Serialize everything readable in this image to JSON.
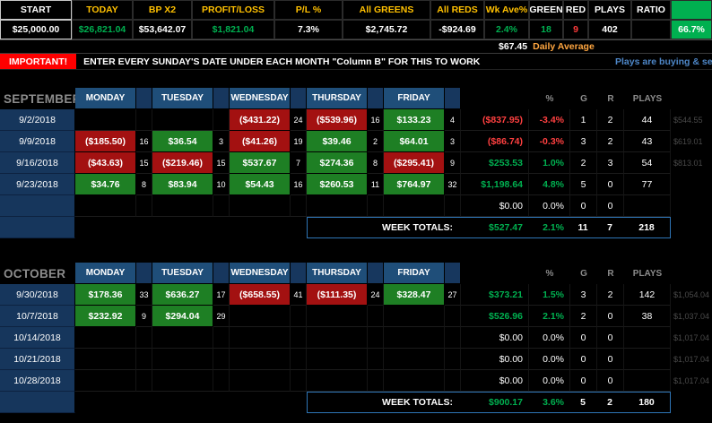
{
  "summary": {
    "cells": [
      {
        "label": "START",
        "value": "$25,000.00",
        "lc": "white",
        "vc": "white",
        "boxed": true
      },
      {
        "label": "TODAY",
        "value": "$26,821.04",
        "lc": "gold",
        "vc": "green"
      },
      {
        "label": "BP X2",
        "value": "$53,642.07",
        "lc": "gold",
        "vc": "white"
      },
      {
        "label": "PROFIT/LOSS",
        "value": "$1,821.04",
        "lc": "gold",
        "vc": "green"
      },
      {
        "label": "P/L %",
        "value": "7.3%",
        "lc": "gold",
        "vc": "white"
      },
      {
        "label": "All GREENS",
        "value": "$2,745.72",
        "lc": "gold",
        "vc": "white"
      },
      {
        "label": "All REDS",
        "value": "-$924.69",
        "lc": "gold",
        "vc": "white"
      },
      {
        "label": "Wk Ave%",
        "value": "2.4%",
        "lc": "gold",
        "vc": "green"
      },
      {
        "label": "GREEN",
        "value": "18",
        "lc": "white",
        "vc": "green"
      },
      {
        "label": "RED",
        "value": "9",
        "lc": "white",
        "vc": "red"
      },
      {
        "label": "PLAYS",
        "value": "402",
        "lc": "white",
        "vc": "white"
      },
      {
        "label": "RATIO",
        "value": "",
        "lc": "white",
        "vc": "white"
      },
      {
        "label": "",
        "value": "66.7%",
        "lc": "white",
        "vc": "white",
        "swatch": true
      }
    ]
  },
  "daily_average": {
    "value": "$67.45",
    "label": "Daily Average"
  },
  "banner": {
    "tag": "IMPORTANT!",
    "message": "ENTER EVERY SUNDAY'S DATE UNDER EACH MONTH \"Column B\" FOR THIS TO WORK",
    "note": "Plays are buying & se"
  },
  "day_headers": [
    "MONDAY",
    "TUESDAY",
    "WEDNESDAY",
    "THURSDAY",
    "FRIDAY"
  ],
  "stat_headers": [
    "%",
    "G",
    "R",
    "PLAYS"
  ],
  "week_totals_label": "WEEK TOTALS:",
  "months": [
    {
      "name": "SEPTEMBER",
      "rows": [
        {
          "date": "9/2/2018",
          "days": [
            null,
            null,
            {
              "v": "($431.22)",
              "t": "neg",
              "c": "24"
            },
            {
              "v": "($539.96)",
              "t": "neg",
              "c": "16"
            },
            {
              "v": "$133.23",
              "t": "pos",
              "c": "4"
            }
          ],
          "total": {
            "v": "($837.95)",
            "t": "neg"
          },
          "pct": {
            "v": "-3.4%",
            "t": "neg"
          },
          "g": "1",
          "r": "2",
          "plays": "44",
          "ghost": "$544.55"
        },
        {
          "date": "9/9/2018",
          "days": [
            {
              "v": "($185.50)",
              "t": "neg",
              "c": "16"
            },
            {
              "v": "$36.54",
              "t": "pos",
              "c": "3"
            },
            {
              "v": "($41.26)",
              "t": "neg",
              "c": "19"
            },
            {
              "v": "$39.46",
              "t": "pos",
              "c": "2"
            },
            {
              "v": "$64.01",
              "t": "pos",
              "c": "3"
            }
          ],
          "total": {
            "v": "($86.74)",
            "t": "neg"
          },
          "pct": {
            "v": "-0.3%",
            "t": "neg"
          },
          "g": "3",
          "r": "2",
          "plays": "43",
          "ghost": "$619.01"
        },
        {
          "date": "9/16/2018",
          "days": [
            {
              "v": "($43.63)",
              "t": "neg",
              "c": "15"
            },
            {
              "v": "($219.46)",
              "t": "neg",
              "c": "15"
            },
            {
              "v": "$537.67",
              "t": "pos",
              "c": "7"
            },
            {
              "v": "$274.36",
              "t": "pos",
              "c": "8"
            },
            {
              "v": "($295.41)",
              "t": "neg",
              "c": "9"
            }
          ],
          "total": {
            "v": "$253.53",
            "t": "pos"
          },
          "pct": {
            "v": "1.0%",
            "t": "pos"
          },
          "g": "2",
          "r": "3",
          "plays": "54",
          "ghost": "$813.01"
        },
        {
          "date": "9/23/2018",
          "days": [
            {
              "v": "$34.76",
              "t": "pos",
              "c": "8"
            },
            {
              "v": "$83.94",
              "t": "pos",
              "c": "10"
            },
            {
              "v": "$54.43",
              "t": "pos",
              "c": "16"
            },
            {
              "v": "$260.53",
              "t": "pos",
              "c": "11"
            },
            {
              "v": "$764.97",
              "t": "pos",
              "c": "32"
            }
          ],
          "total": {
            "v": "$1,198.64",
            "t": "pos"
          },
          "pct": {
            "v": "4.8%",
            "t": "pos"
          },
          "g": "5",
          "r": "0",
          "plays": "77",
          "ghost": ""
        },
        {
          "date": "",
          "days": [
            null,
            null,
            null,
            null,
            null
          ],
          "total": {
            "v": "$0.00",
            "t": "zero"
          },
          "pct": {
            "v": "0.0%",
            "t": "zero"
          },
          "g": "0",
          "r": "0",
          "plays": "",
          "ghost": ""
        }
      ],
      "totals": {
        "total": "$527.47",
        "pct": "2.1%",
        "g": "11",
        "r": "7",
        "plays": "218"
      }
    },
    {
      "name": "OCTOBER",
      "rows": [
        {
          "date": "9/30/2018",
          "days": [
            {
              "v": "$178.36",
              "t": "pos",
              "c": "33"
            },
            {
              "v": "$636.27",
              "t": "pos",
              "c": "17"
            },
            {
              "v": "($658.55)",
              "t": "neg",
              "c": "41"
            },
            {
              "v": "($111.35)",
              "t": "neg",
              "c": "24"
            },
            {
              "v": "$328.47",
              "t": "pos",
              "c": "27"
            }
          ],
          "total": {
            "v": "$373.21",
            "t": "pos"
          },
          "pct": {
            "v": "1.5%",
            "t": "pos"
          },
          "g": "3",
          "r": "2",
          "plays": "142",
          "ghost": "$1,054.04"
        },
        {
          "date": "10/7/2018",
          "days": [
            {
              "v": "$232.92",
              "t": "pos",
              "c": "9"
            },
            {
              "v": "$294.04",
              "t": "pos",
              "c": "29"
            },
            null,
            null,
            null
          ],
          "total": {
            "v": "$526.96",
            "t": "pos"
          },
          "pct": {
            "v": "2.1%",
            "t": "pos"
          },
          "g": "2",
          "r": "0",
          "plays": "38",
          "ghost": "$1,037.04"
        },
        {
          "date": "10/14/2018",
          "days": [
            null,
            null,
            null,
            null,
            null
          ],
          "total": {
            "v": "$0.00",
            "t": "zero"
          },
          "pct": {
            "v": "0.0%",
            "t": "zero"
          },
          "g": "0",
          "r": "0",
          "plays": "",
          "ghost": "$1,017.04"
        },
        {
          "date": "10/21/2018",
          "days": [
            null,
            null,
            null,
            null,
            null
          ],
          "total": {
            "v": "$0.00",
            "t": "zero"
          },
          "pct": {
            "v": "0.0%",
            "t": "zero"
          },
          "g": "0",
          "r": "0",
          "plays": "",
          "ghost": "$1,017.04"
        },
        {
          "date": "10/28/2018",
          "days": [
            null,
            null,
            null,
            null,
            null
          ],
          "total": {
            "v": "$0.00",
            "t": "zero"
          },
          "pct": {
            "v": "0.0%",
            "t": "zero"
          },
          "g": "0",
          "r": "0",
          "plays": "",
          "ghost": "$1,017.04"
        }
      ],
      "totals": {
        "total": "$900.17",
        "pct": "3.6%",
        "g": "5",
        "r": "2",
        "plays": "180"
      }
    }
  ],
  "colors": {
    "gold": "#FFC000",
    "green": "#00B050",
    "red_text": "#FF3B3B",
    "positive_bg": "#1E7F24",
    "negative_bg": "#A31111",
    "header_blue": "#1F4E79",
    "date_navy": "#16365C",
    "banner_red": "#FF0000",
    "note_blue": "#4E87C8",
    "orange": "#FFA640",
    "section_gray": "#8C8C8C",
    "totals_border": "#2E75B6"
  }
}
